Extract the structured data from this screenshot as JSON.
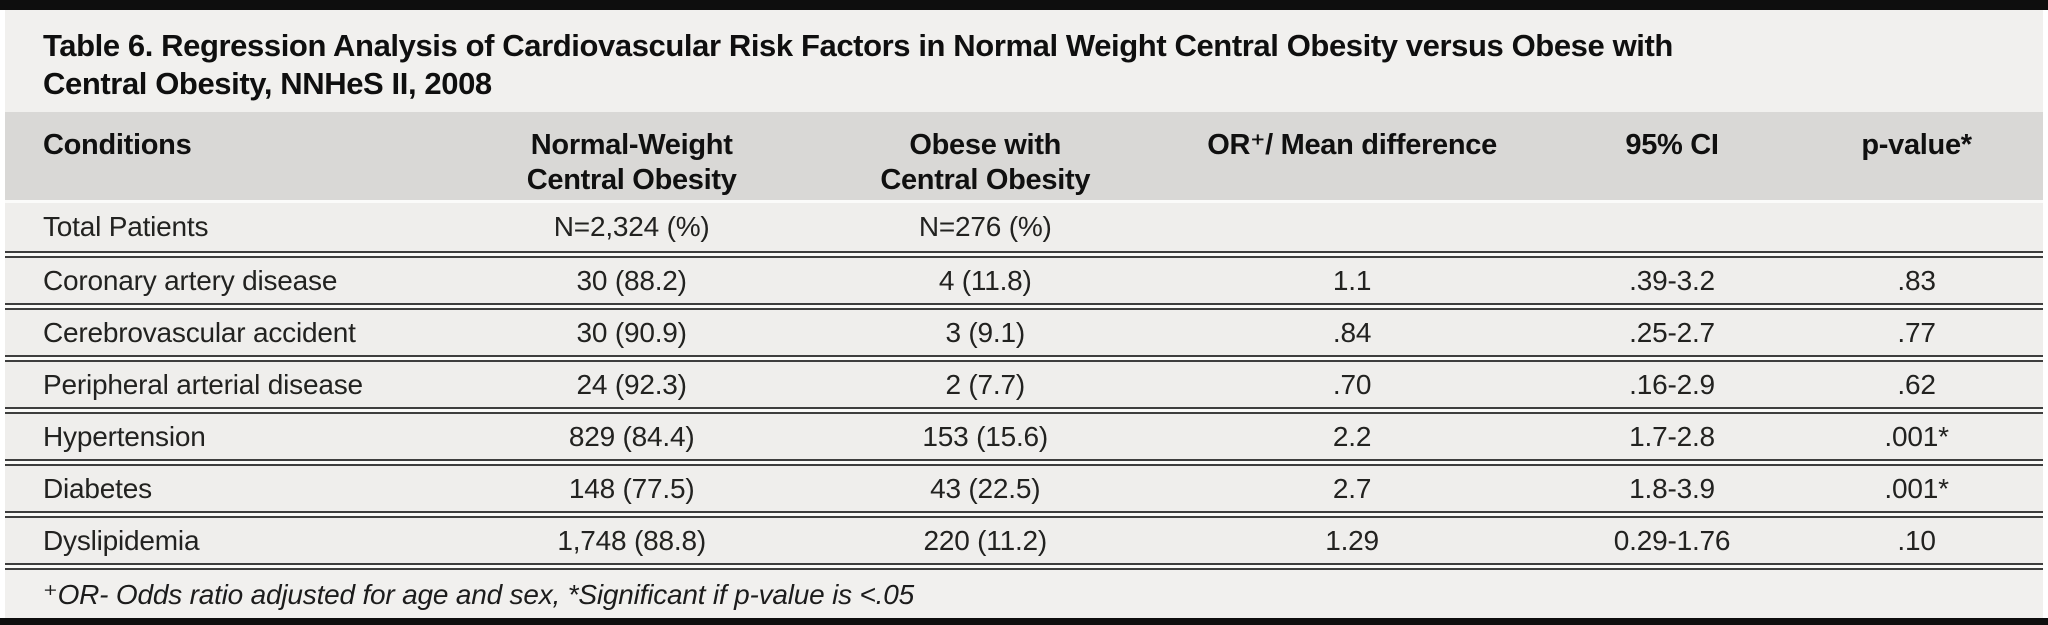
{
  "table": {
    "title_lines": [
      "Table 6. Regression Analysis of Cardiovascular Risk Factors in Normal Weight Central Obesity versus Obese with",
      "Central Obesity, NNHeS II, 2008"
    ],
    "title_full": "Table 6. Regression Analysis of Cardiovascular Risk Factors in Normal Weight Central Obesity versus Obese with Central Obesity, NNHeS II, 2008",
    "columns": [
      {
        "label": "Conditions"
      },
      {
        "line1": "Normal-Weight",
        "line2": "Central Obesity"
      },
      {
        "line1": "Obese with",
        "line2": "Central Obesity"
      },
      {
        "label": "OR⁺/ Mean difference"
      },
      {
        "label": "95% CI"
      },
      {
        "label": "p-value*"
      }
    ],
    "rows": [
      [
        "Total Patients",
        "N=2,324 (%)",
        "N=276 (%)",
        "",
        "",
        ""
      ],
      [
        "Coronary artery disease",
        "30 (88.2)",
        "4 (11.8)",
        "1.1",
        ".39-3.2",
        ".83"
      ],
      [
        "Cerebrovascular accident",
        "30 (90.9)",
        "3 (9.1)",
        ".84",
        ".25-2.7",
        ".77"
      ],
      [
        "Peripheral arterial disease",
        "24 (92.3)",
        "2 (7.7)",
        ".70",
        ".16-2.9",
        ".62"
      ],
      [
        "Hypertension",
        "829 (84.4)",
        "153 (15.6)",
        "2.2",
        "1.7-2.8",
        ".001*"
      ],
      [
        "Diabetes",
        "148 (77.5)",
        "43 (22.5)",
        "2.7",
        "1.8-3.9",
        ".001*"
      ],
      [
        "Dyslipidemia",
        "1,748 (88.8)",
        "220 (11.2)",
        "1.29",
        "0.29-1.76",
        ".10"
      ]
    ],
    "footnote": "⁺OR- Odds ratio adjusted for age and sex, *Significant if p-value is <.05",
    "colors": {
      "border_bar": "#0e0e0e",
      "title_bg": "#f1f0ee",
      "header_bg": "#d9d8d6",
      "row_bg": "#efeeec",
      "divider_dark": "#3e3e3e",
      "text": "#1a1a1a"
    }
  }
}
